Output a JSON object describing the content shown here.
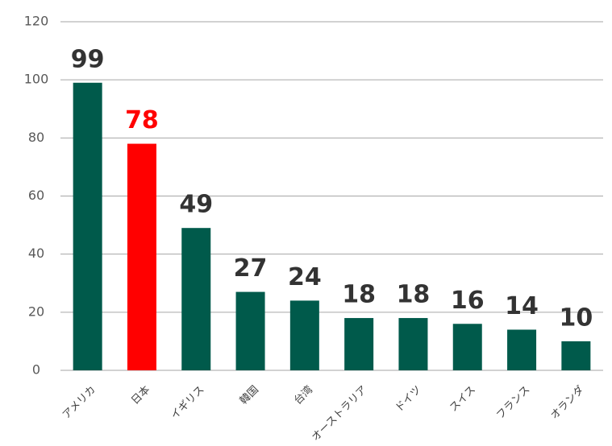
{
  "chart_data": {
    "type": "bar",
    "categories": [
      "アメリカ",
      "日本",
      "イギリス",
      "韓国",
      "台湾",
      "オーストラリア",
      "ドイツ",
      "スイス",
      "フランス",
      "オランダ"
    ],
    "values": [
      99,
      78,
      49,
      27,
      24,
      18,
      18,
      16,
      14,
      10
    ],
    "colors": [
      "#005a4b",
      "#ff0000",
      "#005a4b",
      "#005a4b",
      "#005a4b",
      "#005a4b",
      "#005a4b",
      "#005a4b",
      "#005a4b",
      "#005a4b"
    ],
    "label_colors": [
      "#333333",
      "#ff0000",
      "#333333",
      "#333333",
      "#333333",
      "#333333",
      "#333333",
      "#333333",
      "#333333",
      "#333333"
    ],
    "ylim": [
      0,
      120
    ],
    "yticks": [
      0,
      20,
      40,
      60,
      80,
      100,
      120
    ],
    "grid": true
  }
}
